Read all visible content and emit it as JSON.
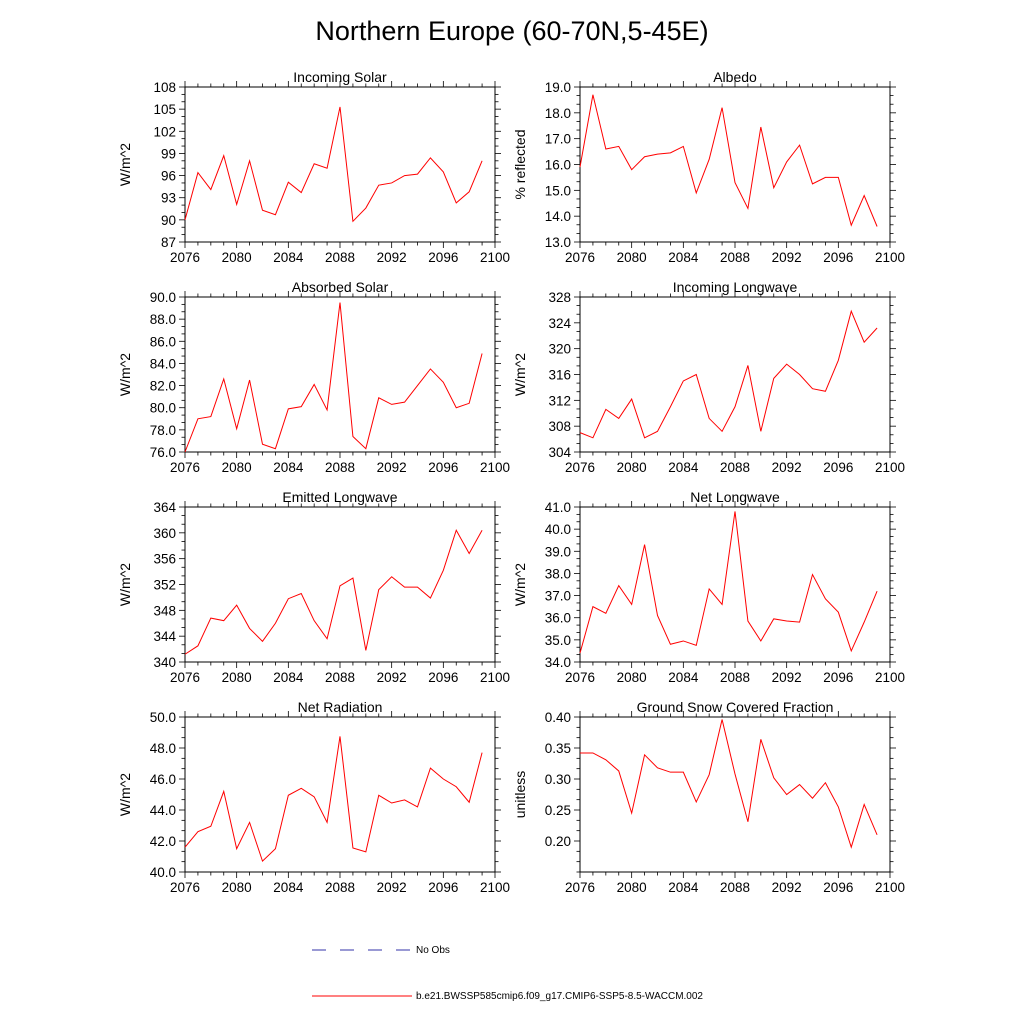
{
  "page": {
    "title": "Northern Europe (60-70N,5-45E)"
  },
  "legend": {
    "no_obs_label": "No Obs",
    "no_obs_color": "#3333aa",
    "model_label": "b.e21.BWSSP585cmip6.f09_g17.CMIP6-SSP5-8.5-WACCM.002",
    "model_color": "#ff0000"
  },
  "chart_data": [
    {
      "type": "line",
      "title": "Incoming Solar",
      "ylabel": "W/m^2",
      "xlabel": "",
      "xlim": [
        2076,
        2100
      ],
      "ylim": [
        87,
        108
      ],
      "xticks": [
        2076,
        2080,
        2084,
        2088,
        2092,
        2096,
        2100
      ],
      "xtick_labels": [
        "2076",
        "2080",
        "2084",
        "2088",
        "2092",
        "2096",
        "2100"
      ],
      "yticks": [
        87,
        90,
        93,
        96,
        99,
        102,
        105,
        108
      ],
      "ytick_labels": [
        "87",
        "90",
        "93",
        "96",
        "99",
        "102",
        "105",
        "108"
      ],
      "series": [
        {
          "name": "b.e21.BWSSP585cmip6.f09_g17.CMIP6-SSP5-8.5-WACCM.002",
          "x": [
            2076,
            2077,
            2078,
            2079,
            2080,
            2081,
            2082,
            2083,
            2084,
            2085,
            2086,
            2087,
            2088,
            2089,
            2090,
            2091,
            2092,
            2093,
            2094,
            2095,
            2096,
            2097,
            2098,
            2099
          ],
          "values": [
            90.0,
            96.4,
            94.1,
            98.7,
            92.1,
            98.0,
            91.3,
            90.7,
            95.1,
            93.7,
            97.6,
            97.0,
            105.3,
            89.8,
            91.6,
            94.7,
            95.0,
            96.0,
            96.2,
            98.4,
            96.5,
            92.3,
            93.8,
            98.0
          ]
        }
      ]
    },
    {
      "type": "line",
      "title": "Albedo",
      "ylabel": "% reflected",
      "xlabel": "",
      "xlim": [
        2076,
        2100
      ],
      "ylim": [
        13.0,
        19.0
      ],
      "xticks": [
        2076,
        2080,
        2084,
        2088,
        2092,
        2096,
        2100
      ],
      "xtick_labels": [
        "2076",
        "2080",
        "2084",
        "2088",
        "2092",
        "2096",
        "2100"
      ],
      "yticks": [
        13.0,
        14.0,
        15.0,
        16.0,
        17.0,
        18.0,
        19.0
      ],
      "ytick_labels": [
        "13.0",
        "14.0",
        "15.0",
        "16.0",
        "17.0",
        "18.0",
        "19.0"
      ],
      "series": [
        {
          "name": "b.e21.BWSSP585cmip6.f09_g17.CMIP6-SSP5-8.5-WACCM.002",
          "x": [
            2076,
            2077,
            2078,
            2079,
            2080,
            2081,
            2082,
            2083,
            2084,
            2085,
            2086,
            2087,
            2088,
            2089,
            2090,
            2091,
            2092,
            2093,
            2094,
            2095,
            2096,
            2097,
            2098,
            2099
          ],
          "values": [
            15.9,
            18.7,
            16.6,
            16.7,
            15.8,
            16.3,
            16.4,
            16.45,
            16.7,
            14.9,
            16.2,
            18.2,
            15.3,
            14.3,
            17.45,
            15.1,
            16.1,
            16.75,
            15.25,
            15.5,
            15.5,
            13.65,
            14.8,
            13.6
          ]
        }
      ]
    },
    {
      "type": "line",
      "title": "Absorbed Solar",
      "ylabel": "W/m^2",
      "xlabel": "",
      "xlim": [
        2076,
        2100
      ],
      "ylim": [
        76.0,
        90.0
      ],
      "xticks": [
        2076,
        2080,
        2084,
        2088,
        2092,
        2096,
        2100
      ],
      "xtick_labels": [
        "2076",
        "2080",
        "2084",
        "2088",
        "2092",
        "2096",
        "2100"
      ],
      "yticks": [
        76.0,
        78.0,
        80.0,
        82.0,
        84.0,
        86.0,
        88.0,
        90.0
      ],
      "ytick_labels": [
        "76.0",
        "78.0",
        "80.0",
        "82.0",
        "84.0",
        "86.0",
        "88.0",
        "90.0"
      ],
      "series": [
        {
          "name": "b.e21.BWSSP585cmip6.f09_g17.CMIP6-SSP5-8.5-WACCM.002",
          "x": [
            2076,
            2077,
            2078,
            2079,
            2080,
            2081,
            2082,
            2083,
            2084,
            2085,
            2086,
            2087,
            2088,
            2089,
            2090,
            2091,
            2092,
            2093,
            2094,
            2095,
            2096,
            2097,
            2098,
            2099
          ],
          "values": [
            76.0,
            79.0,
            79.2,
            82.6,
            78.1,
            82.5,
            76.7,
            76.3,
            79.9,
            80.1,
            82.1,
            79.8,
            89.5,
            77.4,
            76.3,
            80.9,
            80.3,
            80.5,
            82.0,
            83.5,
            82.3,
            80.0,
            80.4,
            84.9
          ]
        }
      ]
    },
    {
      "type": "line",
      "title": "Incoming Longwave",
      "ylabel": "W/m^2",
      "xlabel": "",
      "xlim": [
        2076,
        2100
      ],
      "ylim": [
        304,
        328
      ],
      "xticks": [
        2076,
        2080,
        2084,
        2088,
        2092,
        2096,
        2100
      ],
      "xtick_labels": [
        "2076",
        "2080",
        "2084",
        "2088",
        "2092",
        "2096",
        "2100"
      ],
      "yticks": [
        304,
        308,
        312,
        316,
        320,
        324,
        328
      ],
      "ytick_labels": [
        "304",
        "308",
        "312",
        "316",
        "320",
        "324",
        "328"
      ],
      "series": [
        {
          "name": "b.e21.BWSSP585cmip6.f09_g17.CMIP6-SSP5-8.5-WACCM.002",
          "x": [
            2076,
            2077,
            2078,
            2079,
            2080,
            2081,
            2082,
            2083,
            2084,
            2085,
            2086,
            2087,
            2088,
            2089,
            2090,
            2091,
            2092,
            2093,
            2094,
            2095,
            2096,
            2097,
            2098,
            2099
          ],
          "values": [
            307.0,
            306.2,
            310.6,
            309.2,
            312.2,
            306.2,
            307.2,
            311.0,
            315.0,
            316.0,
            309.2,
            307.2,
            311.0,
            317.4,
            307.2,
            315.4,
            317.6,
            316.0,
            313.8,
            313.4,
            318.2,
            325.8,
            321.0,
            323.2
          ]
        }
      ]
    },
    {
      "type": "line",
      "title": "Emitted Longwave",
      "ylabel": "W/m^2",
      "xlabel": "",
      "xlim": [
        2076,
        2100
      ],
      "ylim": [
        340,
        364
      ],
      "xticks": [
        2076,
        2080,
        2084,
        2088,
        2092,
        2096,
        2100
      ],
      "xtick_labels": [
        "2076",
        "2080",
        "2084",
        "2088",
        "2092",
        "2096",
        "2100"
      ],
      "yticks": [
        340,
        344,
        348,
        352,
        356,
        360,
        364
      ],
      "ytick_labels": [
        "340",
        "344",
        "348",
        "352",
        "356",
        "360",
        "364"
      ],
      "series": [
        {
          "name": "b.e21.BWSSP585cmip6.f09_g17.CMIP6-SSP5-8.5-WACCM.002",
          "x": [
            2076,
            2077,
            2078,
            2079,
            2080,
            2081,
            2082,
            2083,
            2084,
            2085,
            2086,
            2087,
            2088,
            2089,
            2090,
            2091,
            2092,
            2093,
            2094,
            2095,
            2096,
            2097,
            2098,
            2099
          ],
          "values": [
            341.2,
            342.5,
            346.8,
            346.4,
            348.8,
            345.2,
            343.2,
            346.0,
            349.8,
            350.6,
            346.4,
            343.6,
            351.8,
            353.0,
            341.8,
            351.2,
            353.2,
            351.6,
            351.6,
            349.9,
            354.2,
            360.4,
            356.8,
            360.4
          ]
        }
      ]
    },
    {
      "type": "line",
      "title": "Net Longwave",
      "ylabel": "W/m^2",
      "xlabel": "",
      "xlim": [
        2076,
        2100
      ],
      "ylim": [
        34.0,
        41.0
      ],
      "xticks": [
        2076,
        2080,
        2084,
        2088,
        2092,
        2096,
        2100
      ],
      "xtick_labels": [
        "2076",
        "2080",
        "2084",
        "2088",
        "2092",
        "2096",
        "2100"
      ],
      "yticks": [
        34.0,
        35.0,
        36.0,
        37.0,
        38.0,
        39.0,
        40.0,
        41.0
      ],
      "ytick_labels": [
        "34.0",
        "35.0",
        "36.0",
        "37.0",
        "38.0",
        "39.0",
        "40.0",
        "41.0"
      ],
      "series": [
        {
          "name": "b.e21.BWSSP585cmip6.f09_g17.CMIP6-SSP5-8.5-WACCM.002",
          "x": [
            2076,
            2077,
            2078,
            2079,
            2080,
            2081,
            2082,
            2083,
            2084,
            2085,
            2086,
            2087,
            2088,
            2089,
            2090,
            2091,
            2092,
            2093,
            2094,
            2095,
            2096,
            2097,
            2098,
            2099
          ],
          "values": [
            34.4,
            36.5,
            36.2,
            37.45,
            36.6,
            39.3,
            36.1,
            34.8,
            34.95,
            34.75,
            37.3,
            36.6,
            40.8,
            35.85,
            34.95,
            35.95,
            35.85,
            35.8,
            37.95,
            36.85,
            36.25,
            34.5,
            35.8,
            37.2
          ]
        }
      ]
    },
    {
      "type": "line",
      "title": "Net Radiation",
      "ylabel": "W/m^2",
      "xlabel": "",
      "xlim": [
        2076,
        2100
      ],
      "ylim": [
        40.0,
        50.0
      ],
      "xticks": [
        2076,
        2080,
        2084,
        2088,
        2092,
        2096,
        2100
      ],
      "xtick_labels": [
        "2076",
        "2080",
        "2084",
        "2088",
        "2092",
        "2096",
        "2100"
      ],
      "yticks": [
        40.0,
        42.0,
        44.0,
        46.0,
        48.0,
        50.0
      ],
      "ytick_labels": [
        "40.0",
        "42.0",
        "44.0",
        "46.0",
        "48.0",
        "50.0"
      ],
      "series": [
        {
          "name": "b.e21.BWSSP585cmip6.f09_g17.CMIP6-SSP5-8.5-WACCM.002",
          "x": [
            2076,
            2077,
            2078,
            2079,
            2080,
            2081,
            2082,
            2083,
            2084,
            2085,
            2086,
            2087,
            2088,
            2089,
            2090,
            2091,
            2092,
            2093,
            2094,
            2095,
            2096,
            2097,
            2098,
            2099
          ],
          "values": [
            41.6,
            42.6,
            42.95,
            45.2,
            41.5,
            43.2,
            40.7,
            41.5,
            44.95,
            45.4,
            44.85,
            43.2,
            48.75,
            41.55,
            41.3,
            44.95,
            44.45,
            44.65,
            44.2,
            46.7,
            46.0,
            45.5,
            44.5,
            47.7
          ]
        }
      ]
    },
    {
      "type": "line",
      "title": "Ground Snow Covered Fraction",
      "ylabel": "unitless",
      "xlabel": "",
      "xlim": [
        2076,
        2100
      ],
      "ylim": [
        0.15,
        0.4
      ],
      "xticks": [
        2076,
        2080,
        2084,
        2088,
        2092,
        2096,
        2100
      ],
      "xtick_labels": [
        "2076",
        "2080",
        "2084",
        "2088",
        "2092",
        "2096",
        "2100"
      ],
      "yticks": [
        0.2,
        0.25,
        0.3,
        0.35,
        0.4
      ],
      "ytick_labels": [
        "0.20",
        "0.25",
        "0.30",
        "0.35",
        "0.40"
      ],
      "series": [
        {
          "name": "b.e21.BWSSP585cmip6.f09_g17.CMIP6-SSP5-8.5-WACCM.002",
          "x": [
            2076,
            2077,
            2078,
            2079,
            2080,
            2081,
            2082,
            2083,
            2084,
            2085,
            2086,
            2087,
            2088,
            2089,
            2090,
            2091,
            2092,
            2093,
            2094,
            2095,
            2096,
            2097,
            2098,
            2099
          ],
          "values": [
            0.342,
            0.342,
            0.331,
            0.313,
            0.245,
            0.339,
            0.318,
            0.311,
            0.311,
            0.263,
            0.307,
            0.396,
            0.308,
            0.231,
            0.364,
            0.302,
            0.275,
            0.291,
            0.269,
            0.294,
            0.255,
            0.19,
            0.259,
            0.21
          ]
        }
      ]
    }
  ]
}
